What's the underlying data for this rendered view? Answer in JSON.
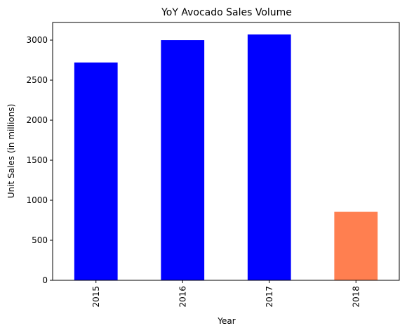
{
  "chart_data": {
    "type": "bar",
    "title": "YoY Avocado Sales Volume",
    "xlabel": "Year",
    "ylabel": "Unit Sales (in millions)",
    "categories": [
      "2015",
      "2016",
      "2017",
      "2018"
    ],
    "values": [
      2720,
      3000,
      3070,
      855
    ],
    "bar_colors": [
      "#0000ff",
      "#0000ff",
      "#0000ff",
      "#ff7f50"
    ],
    "ylim": [
      0,
      3220
    ],
    "yticks": [
      0,
      500,
      1000,
      1500,
      2000,
      2500,
      3000
    ],
    "grid": false,
    "legend": "none"
  }
}
